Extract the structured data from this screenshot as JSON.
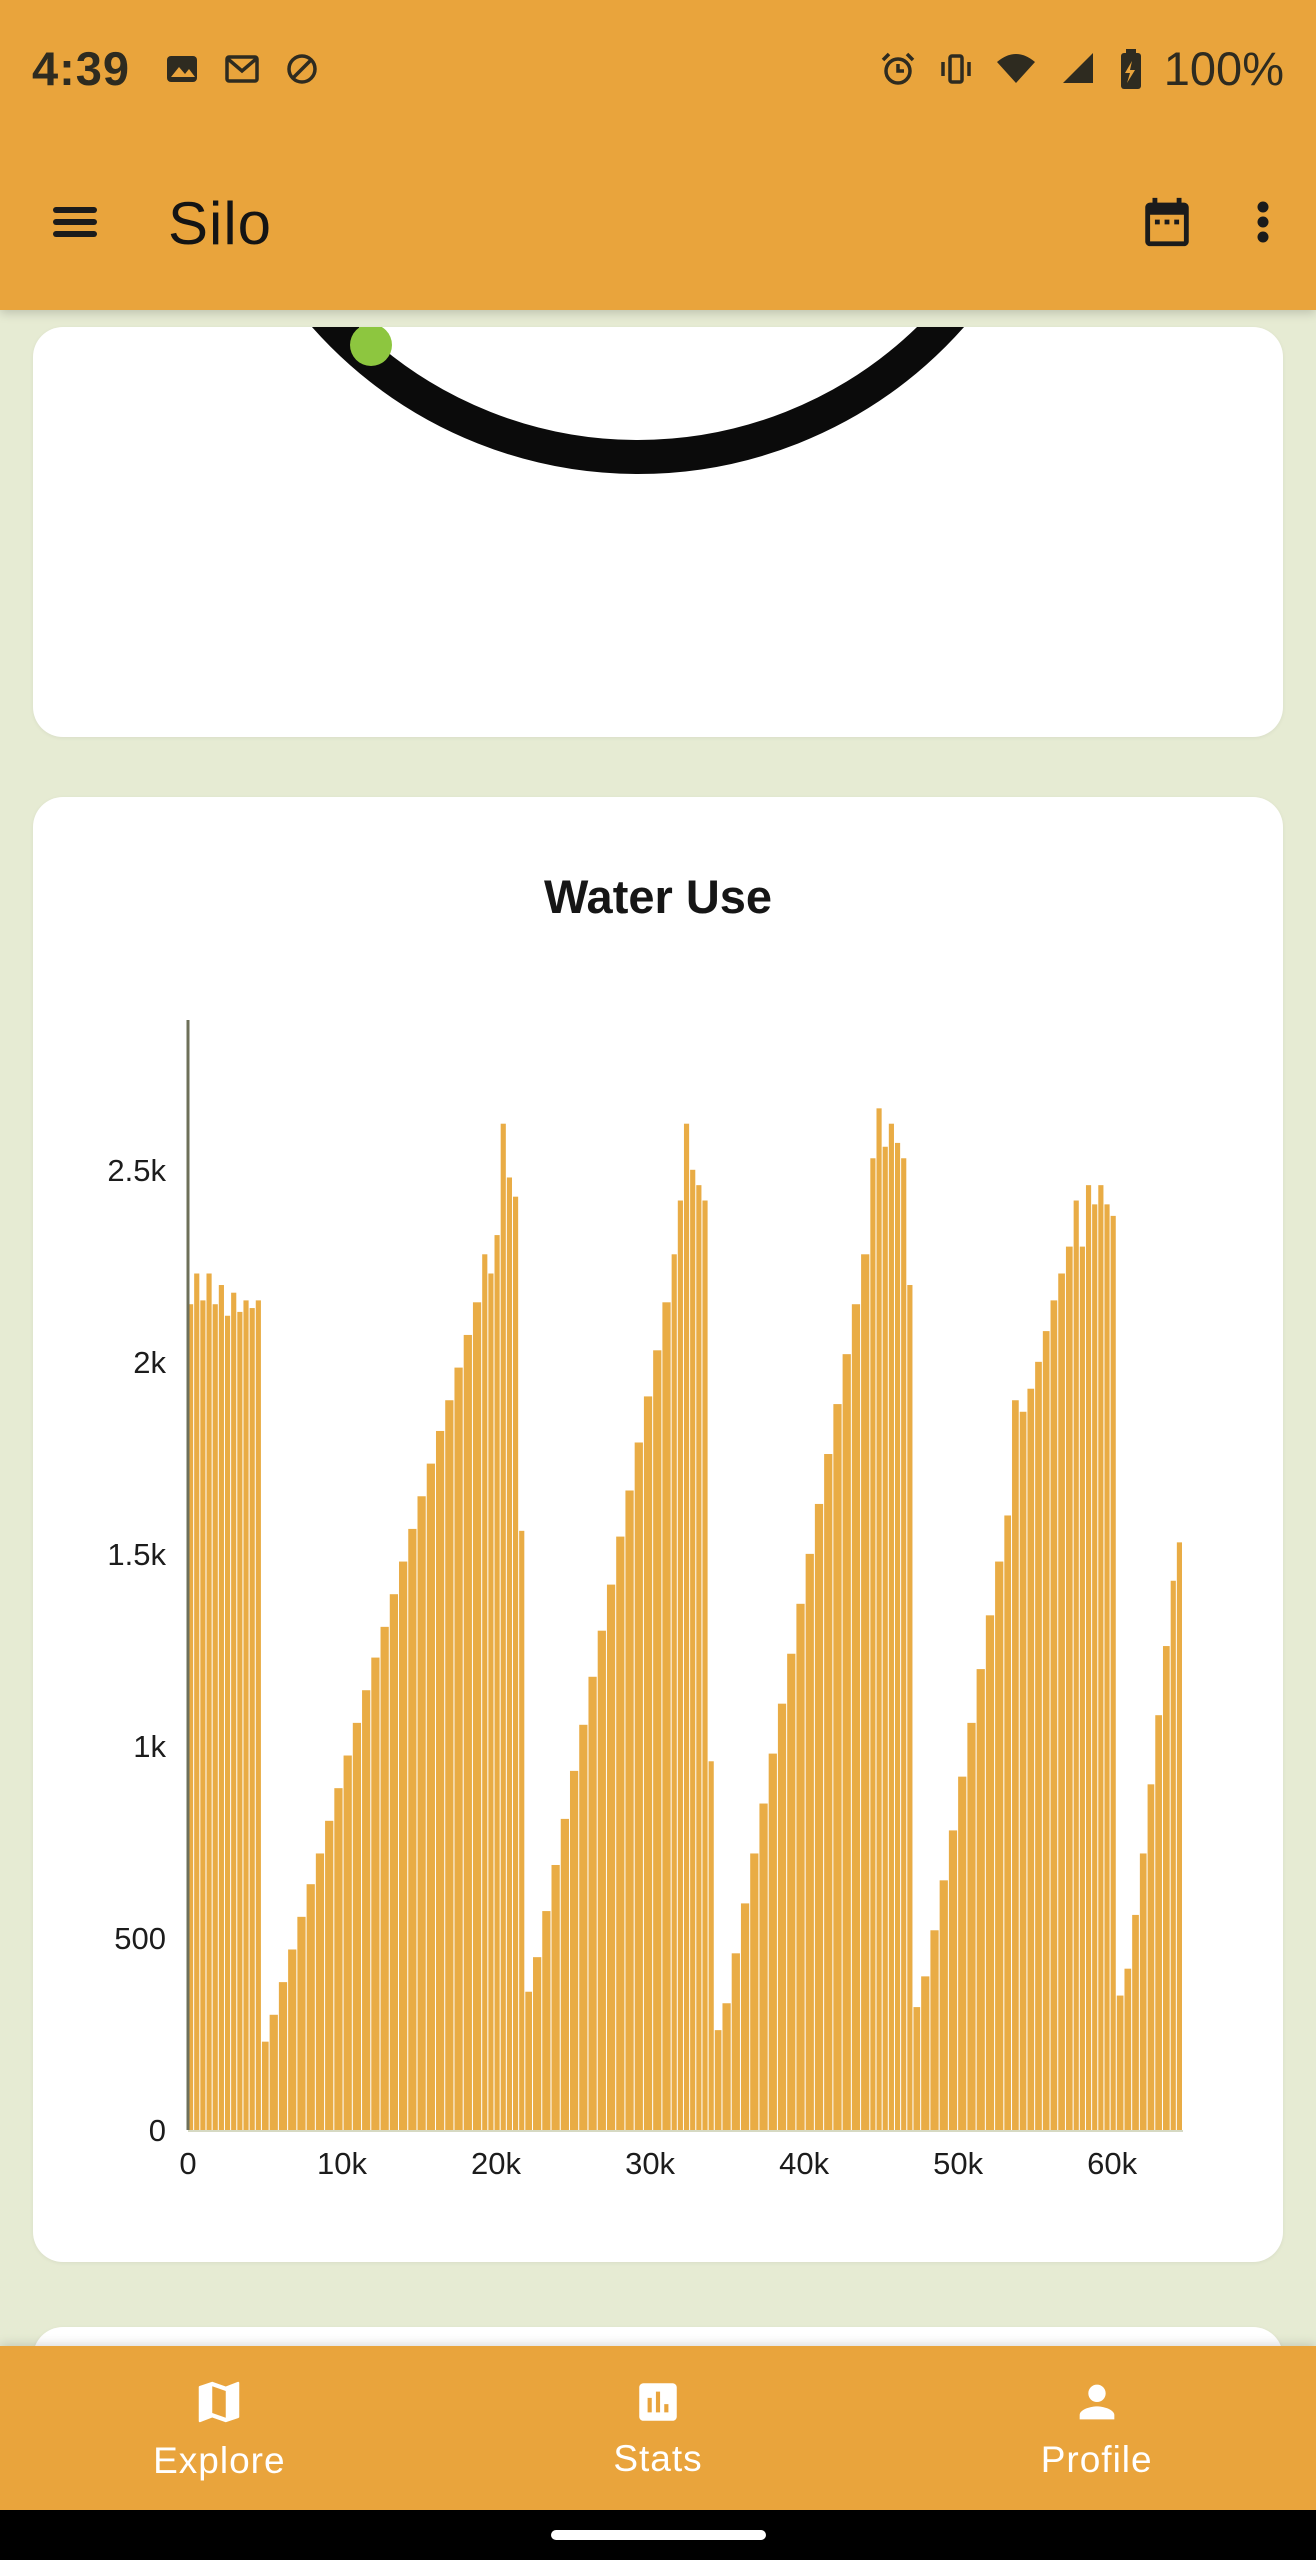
{
  "status_bar": {
    "time": "4:39",
    "battery_level": "100%",
    "left_icons": [
      "image-icon",
      "gmail-icon",
      "data-saver-icon"
    ],
    "right_icons": [
      "alarm-icon",
      "vibrate-icon",
      "wifi-icon",
      "signal-icon",
      "battery-icon"
    ]
  },
  "app_bar": {
    "title": "Silo",
    "icons": [
      "menu-icon",
      "calendar-icon",
      "overflow-menu-icon"
    ]
  },
  "bottom_nav": {
    "items": [
      {
        "label": "Explore",
        "icon": "map-icon"
      },
      {
        "label": "Stats",
        "icon": "stats-icon"
      },
      {
        "label": "Profile",
        "icon": "profile-icon"
      }
    ]
  },
  "colors": {
    "primary": "#E9A43C",
    "background": "#E6EBD3",
    "card": "#FFFFFF",
    "bar": "#E9AC45",
    "axis": "#6E705A",
    "text_dark": "#1C1C1C",
    "nav_text": "#FFFFFF",
    "gauge_arc": "#0B0B0B",
    "gauge_dot": "#8DC63F"
  },
  "chart_data": {
    "type": "bar",
    "title": "Water Use",
    "xlabel": "",
    "ylabel": "",
    "xlim": [
      0,
      64600
    ],
    "ylim": [
      0,
      2890
    ],
    "grid": false,
    "legend": "none",
    "bar_color": "#E9AC45",
    "axis_color": "#6E705A",
    "x_end": 64600,
    "xticks": [
      {
        "v": 0,
        "label": "0"
      },
      {
        "v": 10000,
        "label": "10k"
      },
      {
        "v": 20000,
        "label": "20k"
      },
      {
        "v": 30000,
        "label": "30k"
      },
      {
        "v": 40000,
        "label": "40k"
      },
      {
        "v": 50000,
        "label": "50k"
      },
      {
        "v": 60000,
        "label": "60k"
      }
    ],
    "yticks": [
      {
        "v": 0,
        "label": "0"
      },
      {
        "v": 500,
        "label": "500"
      },
      {
        "v": 1000,
        "label": "1k"
      },
      {
        "v": 1500,
        "label": "1.5k"
      },
      {
        "v": 2000,
        "label": "2k"
      },
      {
        "v": 2500,
        "label": "2.5k"
      }
    ],
    "points": [
      [
        0,
        2150
      ],
      [
        400,
        2230
      ],
      [
        800,
        2160
      ],
      [
        1200,
        2230
      ],
      [
        1600,
        2150
      ],
      [
        2000,
        2200
      ],
      [
        2400,
        2120
      ],
      [
        2800,
        2180
      ],
      [
        3200,
        2130
      ],
      [
        3600,
        2160
      ],
      [
        4000,
        2140
      ],
      [
        4400,
        2160
      ],
      [
        4800,
        230
      ],
      [
        5300,
        300
      ],
      [
        5900,
        385
      ],
      [
        6500,
        470
      ],
      [
        7100,
        555
      ],
      [
        7700,
        640
      ],
      [
        8300,
        720
      ],
      [
        8900,
        805
      ],
      [
        9500,
        890
      ],
      [
        10100,
        975
      ],
      [
        10700,
        1060
      ],
      [
        11300,
        1145
      ],
      [
        11900,
        1230
      ],
      [
        12500,
        1310
      ],
      [
        13100,
        1395
      ],
      [
        13700,
        1480
      ],
      [
        14300,
        1565
      ],
      [
        14900,
        1650
      ],
      [
        15500,
        1735
      ],
      [
        16100,
        1820
      ],
      [
        16700,
        1900
      ],
      [
        17300,
        1985
      ],
      [
        17900,
        2070
      ],
      [
        18500,
        2155
      ],
      [
        19100,
        2280
      ],
      [
        19500,
        2230
      ],
      [
        19900,
        2330
      ],
      [
        20300,
        2620
      ],
      [
        20700,
        2480
      ],
      [
        21100,
        2430
      ],
      [
        21500,
        1560
      ],
      [
        21900,
        360
      ],
      [
        22400,
        450
      ],
      [
        23000,
        570
      ],
      [
        23600,
        690
      ],
      [
        24200,
        810
      ],
      [
        24800,
        935
      ],
      [
        25400,
        1055
      ],
      [
        26000,
        1180
      ],
      [
        26600,
        1300
      ],
      [
        27200,
        1420
      ],
      [
        27800,
        1545
      ],
      [
        28400,
        1665
      ],
      [
        29000,
        1790
      ],
      [
        29600,
        1910
      ],
      [
        30200,
        2030
      ],
      [
        30800,
        2155
      ],
      [
        31400,
        2280
      ],
      [
        31800,
        2420
      ],
      [
        32200,
        2620
      ],
      [
        32600,
        2500
      ],
      [
        33000,
        2460
      ],
      [
        33400,
        2420
      ],
      [
        33800,
        960
      ],
      [
        34200,
        260
      ],
      [
        34700,
        330
      ],
      [
        35300,
        460
      ],
      [
        35900,
        590
      ],
      [
        36500,
        720
      ],
      [
        37100,
        850
      ],
      [
        37700,
        980
      ],
      [
        38300,
        1110
      ],
      [
        38900,
        1240
      ],
      [
        39500,
        1370
      ],
      [
        40100,
        1500
      ],
      [
        40700,
        1630
      ],
      [
        41300,
        1760
      ],
      [
        41900,
        1890
      ],
      [
        42500,
        2020
      ],
      [
        43100,
        2150
      ],
      [
        43700,
        2280
      ],
      [
        44300,
        2530
      ],
      [
        44700,
        2660
      ],
      [
        45100,
        2560
      ],
      [
        45500,
        2620
      ],
      [
        45900,
        2570
      ],
      [
        46300,
        2530
      ],
      [
        46700,
        2200
      ],
      [
        47100,
        320
      ],
      [
        47600,
        400
      ],
      [
        48200,
        520
      ],
      [
        48800,
        650
      ],
      [
        49400,
        780
      ],
      [
        50000,
        920
      ],
      [
        50600,
        1060
      ],
      [
        51200,
        1200
      ],
      [
        51800,
        1340
      ],
      [
        52400,
        1480
      ],
      [
        53000,
        1600
      ],
      [
        53500,
        1900
      ],
      [
        54000,
        1870
      ],
      [
        54500,
        1930
      ],
      [
        55000,
        2000
      ],
      [
        55500,
        2080
      ],
      [
        56000,
        2160
      ],
      [
        56500,
        2230
      ],
      [
        57000,
        2300
      ],
      [
        57500,
        2420
      ],
      [
        57900,
        2300
      ],
      [
        58300,
        2460
      ],
      [
        58700,
        2410
      ],
      [
        59100,
        2460
      ],
      [
        59500,
        2410
      ],
      [
        59900,
        2380
      ],
      [
        60300,
        350
      ],
      [
        60800,
        420
      ],
      [
        61300,
        560
      ],
      [
        61800,
        720
      ],
      [
        62300,
        900
      ],
      [
        62800,
        1080
      ],
      [
        63300,
        1260
      ],
      [
        63800,
        1430
      ],
      [
        64200,
        1530
      ]
    ]
  }
}
